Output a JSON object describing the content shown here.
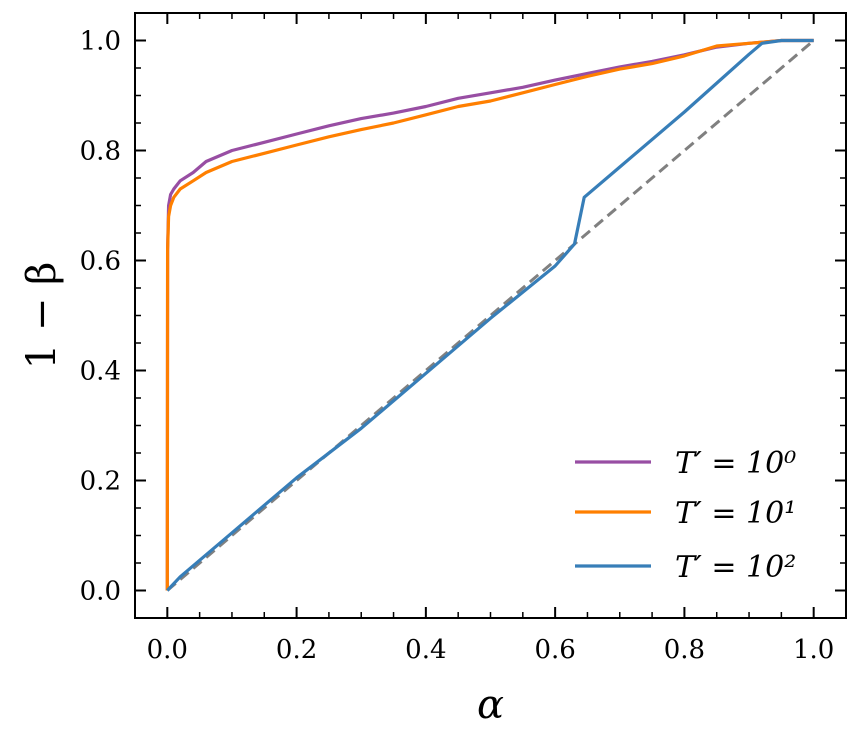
{
  "chart_data": {
    "type": "line",
    "title": "",
    "xlabel": "α",
    "ylabel": "1 − β",
    "xlim": [
      -0.05,
      1.05
    ],
    "ylim": [
      -0.05,
      1.05
    ],
    "xticks": [
      "0.0",
      "0.2",
      "0.4",
      "0.6",
      "0.8",
      "1.0"
    ],
    "yticks": [
      "0.0",
      "0.2",
      "0.4",
      "0.6",
      "0.8",
      "1.0"
    ],
    "grid": false,
    "legend_position": "bottom-right",
    "reference_line": {
      "style": "dashed",
      "color": "#808080",
      "x": [
        0,
        1
      ],
      "y": [
        0,
        1
      ]
    },
    "series": [
      {
        "name": "T′ = 10⁰",
        "color": "#984ea3",
        "x": [
          0,
          0.0005,
          0.002,
          0.005,
          0.01,
          0.02,
          0.04,
          0.06,
          0.1,
          0.15,
          0.2,
          0.25,
          0.3,
          0.35,
          0.4,
          0.45,
          0.5,
          0.55,
          0.6,
          0.65,
          0.7,
          0.75,
          0.8,
          0.85,
          0.9,
          0.95,
          1.0
        ],
        "y": [
          0,
          0.62,
          0.7,
          0.72,
          0.73,
          0.745,
          0.76,
          0.78,
          0.8,
          0.815,
          0.83,
          0.845,
          0.858,
          0.868,
          0.88,
          0.895,
          0.905,
          0.915,
          0.928,
          0.94,
          0.952,
          0.962,
          0.974,
          0.988,
          0.995,
          1.0,
          1.0
        ]
      },
      {
        "name": "T′ = 10¹",
        "color": "#ff7f00",
        "x": [
          0,
          0.0005,
          0.002,
          0.005,
          0.01,
          0.02,
          0.04,
          0.06,
          0.1,
          0.15,
          0.2,
          0.25,
          0.3,
          0.35,
          0.4,
          0.45,
          0.5,
          0.55,
          0.6,
          0.65,
          0.7,
          0.75,
          0.8,
          0.85,
          0.9,
          0.95,
          1.0
        ],
        "y": [
          0,
          0.62,
          0.68,
          0.7,
          0.715,
          0.73,
          0.745,
          0.76,
          0.78,
          0.795,
          0.81,
          0.825,
          0.838,
          0.85,
          0.865,
          0.88,
          0.89,
          0.905,
          0.92,
          0.935,
          0.948,
          0.958,
          0.972,
          0.99,
          0.995,
          1.0,
          1.0
        ]
      },
      {
        "name": "T′ = 10²",
        "color": "#377eb8",
        "x": [
          0,
          0.02,
          0.1,
          0.2,
          0.3,
          0.4,
          0.5,
          0.6,
          0.63,
          0.645,
          0.7,
          0.8,
          0.9,
          0.92,
          0.95,
          1.0
        ],
        "y": [
          0,
          0.025,
          0.105,
          0.205,
          0.295,
          0.395,
          0.495,
          0.59,
          0.63,
          0.715,
          0.77,
          0.87,
          0.975,
          0.995,
          1.0,
          1.0
        ]
      }
    ]
  }
}
